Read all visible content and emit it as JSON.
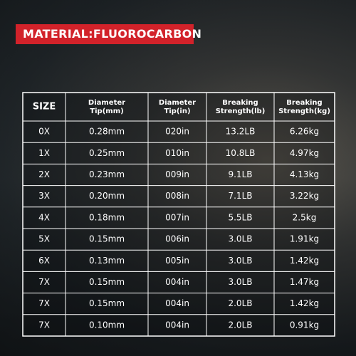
{
  "header": {
    "title": "MATERIAL:FLUOROCARBON"
  },
  "table": {
    "columns": [
      [
        "SIZE"
      ],
      [
        "Diameter",
        "Tip(mm)"
      ],
      [
        "Diameter",
        "Tip(in)"
      ],
      [
        "Breaking",
        "Strength(lb)"
      ],
      [
        "Breaking",
        "Strength(kg)"
      ]
    ],
    "rows": [
      [
        "0X",
        "0.28mm",
        "020in",
        "13.2LB",
        "6.26kg"
      ],
      [
        "1X",
        "0.25mm",
        "010in",
        "10.8LB",
        "4.97kg"
      ],
      [
        "2X",
        "0.23mm",
        "009in",
        "9.1LB",
        "4.13kg"
      ],
      [
        "3X",
        "0.20mm",
        "008in",
        "7.1LB",
        "3.22kg"
      ],
      [
        "4X",
        "0.18mm",
        "007in",
        "5.5LB",
        "2.5kg"
      ],
      [
        "5X",
        "0.15mm",
        "006in",
        "3.0LB",
        "1.91kg"
      ],
      [
        "6X",
        "0.13mm",
        "005in",
        "3.0LB",
        "1.42kg"
      ],
      [
        "7X",
        "0.15mm",
        "004in",
        "3.0LB",
        "1.47kg"
      ],
      [
        "7X",
        "0.15mm",
        "004in",
        "2.0LB",
        "1.42kg"
      ],
      [
        "7X",
        "0.10mm",
        "004in",
        "2.0LB",
        "0.91kg"
      ]
    ]
  }
}
